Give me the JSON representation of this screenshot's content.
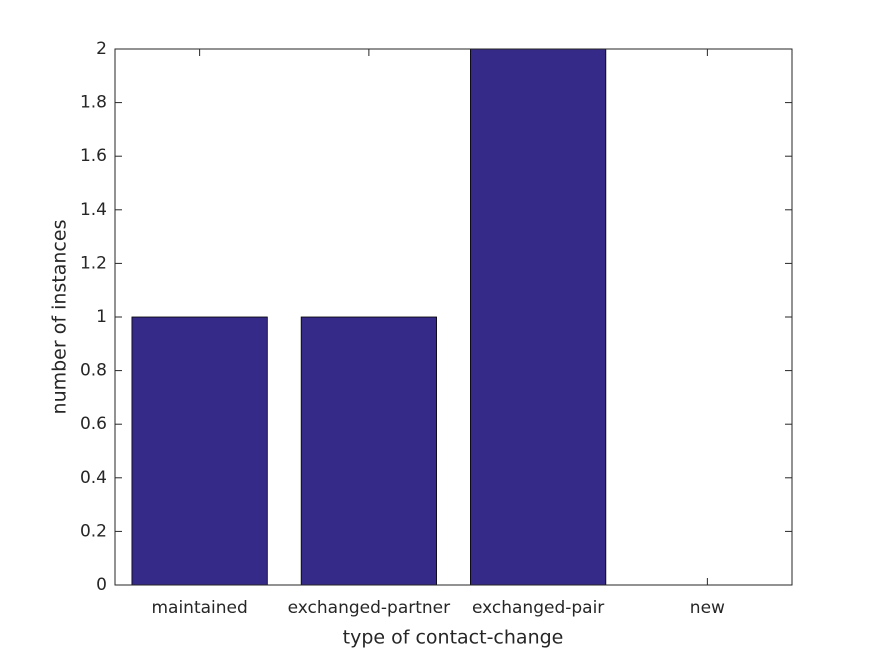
{
  "chart_data": {
    "type": "bar",
    "xlabel": "type of contact-change",
    "ylabel": "number of instances",
    "categories": [
      "maintained",
      "exchanged-partner",
      "exchanged-pair",
      "new"
    ],
    "values": [
      1,
      1,
      2,
      0
    ],
    "color": "#352a87",
    "ylim": [
      0,
      2
    ],
    "yticks": [
      0,
      0.2,
      0.4,
      0.6,
      0.8,
      1,
      1.2,
      1.4,
      1.6,
      1.8,
      2
    ],
    "grid": false
  }
}
